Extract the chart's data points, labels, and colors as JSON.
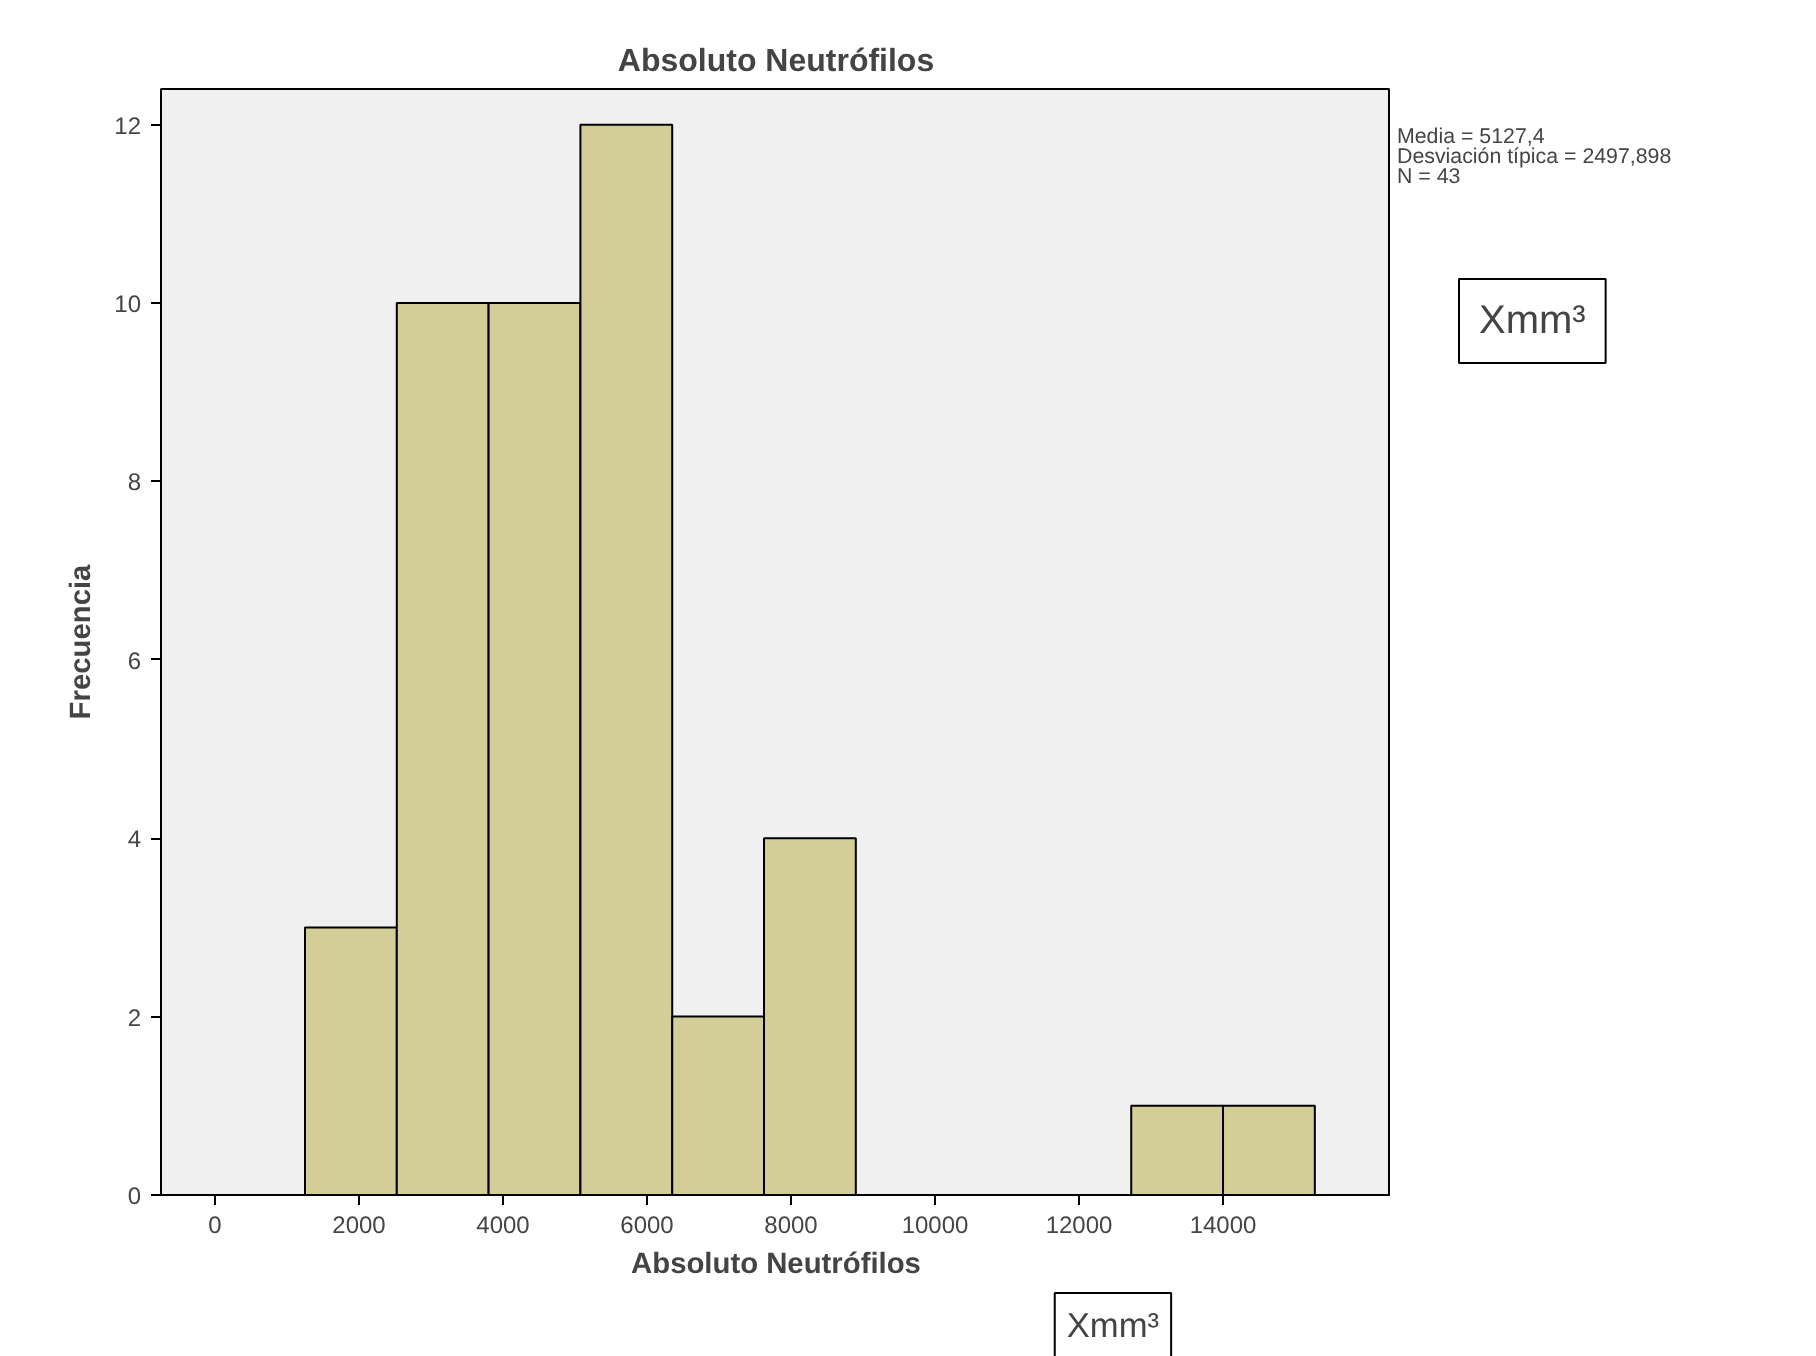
{
  "chart_data": {
    "type": "histogram",
    "title": "Absoluto Neutrófilos",
    "xlabel": "Absoluto Neutrófilos",
    "ylabel": "Frecuencia",
    "bins": [
      1250,
      2525,
      3800,
      5075,
      6350,
      7625,
      8900,
      10175,
      11450,
      12725,
      14000,
      15275
    ],
    "values": [
      3,
      10,
      10,
      12,
      2,
      4,
      0,
      0,
      0,
      1,
      1
    ],
    "color": "#d3ce98",
    "xlim": [
      -750,
      16333
    ],
    "ylim": [
      0,
      12.4
    ],
    "xticks": [
      0,
      2000,
      4000,
      6000,
      8000,
      10000,
      12000,
      14000
    ],
    "yticks": [
      0,
      2,
      4,
      6,
      8,
      10,
      12
    ],
    "grid": false,
    "annotations": [
      "Media = 5127,4",
      "Desviación típica = 2497,898",
      "N = 43",
      "Xmm³",
      "Xmm³"
    ]
  }
}
